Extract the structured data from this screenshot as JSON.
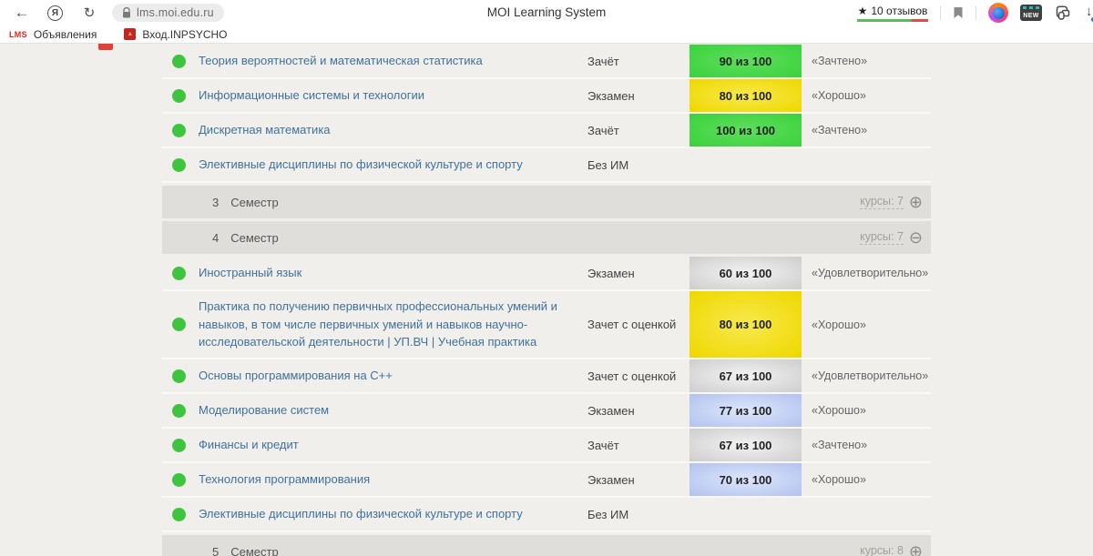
{
  "browser": {
    "yandex_letter": "Я",
    "address": {
      "url": "lms.moi.edu.ru"
    },
    "page_title": "MOI Learning System",
    "reviews": {
      "star": "★",
      "label": "10 отзывов"
    },
    "new_badge_label": "NEW",
    "bookmarks_bar": [
      {
        "icon": "LMS",
        "label": "Объявления"
      },
      {
        "icon": "inpsycho-crest",
        "label": "Вход.INPSYCHO"
      }
    ]
  },
  "icons": {
    "expand": "⊕",
    "collapse": "⊖",
    "back": "←",
    "refresh": "↻",
    "download": "↓",
    "crest": "▲"
  },
  "palette": {
    "dot": "#3fc43f",
    "link_blue": "#41719c",
    "semester_bar": "#dfdedb",
    "rating_green": "#57bf57",
    "rating_red": "#e8493f",
    "badge": {
      "green": {
        "center": "#5fdd5f",
        "edge": "#3cd23c"
      },
      "yellow": {
        "center": "#f7e94e",
        "edge": "#efd800"
      },
      "gray": {
        "center": "#f3f3f3",
        "edge": "#cfcfcf"
      },
      "blue": {
        "center": "#dde6fa",
        "edge": "#b4c4f0"
      }
    }
  },
  "table": {
    "rows": [
      {
        "type": "course",
        "name": "Теория вероятностей и математическая статистика",
        "exam": "Зачёт",
        "score": "90 из 100",
        "score_color": "green",
        "grade": "«Зачтено»"
      },
      {
        "type": "course",
        "name": "Информационные системы и технологии",
        "exam": "Экзамен",
        "score": "80 из 100",
        "score_color": "yellow",
        "grade": "«Хорошо»"
      },
      {
        "type": "course",
        "name": "Дискретная математика",
        "exam": "Зачёт",
        "score": "100 из 100",
        "score_color": "green",
        "grade": "«Зачтено»"
      },
      {
        "type": "course",
        "name": "Элективные дисциплины по физической культуре и спорту",
        "exam": "Без ИМ",
        "score": "",
        "score_color": "",
        "grade": ""
      },
      {
        "type": "semester",
        "number": "3",
        "label": "Семестр",
        "courses_label": "курсы: 7",
        "icon": "plus"
      },
      {
        "type": "semester",
        "number": "4",
        "label": "Семестр",
        "courses_label": "курсы: 7",
        "icon": "minus"
      },
      {
        "type": "course",
        "name": "Иностранный язык",
        "exam": "Экзамен",
        "score": "60 из 100",
        "score_color": "gray",
        "grade": "«Удовлетворительно»"
      },
      {
        "type": "course",
        "tall": true,
        "name": "Практика по получению первичных профессиональных умений и навыков, в том числе первичных умений и навыков научно-исследовательской деятельности | УП.ВЧ | Учебная практика",
        "exam": "Зачет с оценкой",
        "score": "80 из 100",
        "score_color": "yellow",
        "grade": "«Хорошо»"
      },
      {
        "type": "course",
        "name": "Основы программирования на C++",
        "exam": "Зачет с оценкой",
        "score": "67 из 100",
        "score_color": "gray",
        "grade": "«Удовлетворительно»"
      },
      {
        "type": "course",
        "name": "Моделирование систем",
        "exam": "Экзамен",
        "score": "77 из 100",
        "score_color": "blue",
        "grade": "«Хорошо»"
      },
      {
        "type": "course",
        "name": "Финансы и кредит",
        "exam": "Зачёт",
        "score": "67 из 100",
        "score_color": "gray",
        "grade": "«Зачтено»"
      },
      {
        "type": "course",
        "name": "Технология программирования",
        "exam": "Экзамен",
        "score": "70 из 100",
        "score_color": "blue",
        "grade": "«Хорошо»"
      },
      {
        "type": "course",
        "name": "Элективные дисциплины по физической культуре и спорту",
        "exam": "Без ИМ",
        "score": "",
        "score_color": "",
        "grade": ""
      },
      {
        "type": "semester",
        "number": "5",
        "label": "Семестр",
        "courses_label": "курсы: 8",
        "icon": "plus"
      }
    ]
  }
}
